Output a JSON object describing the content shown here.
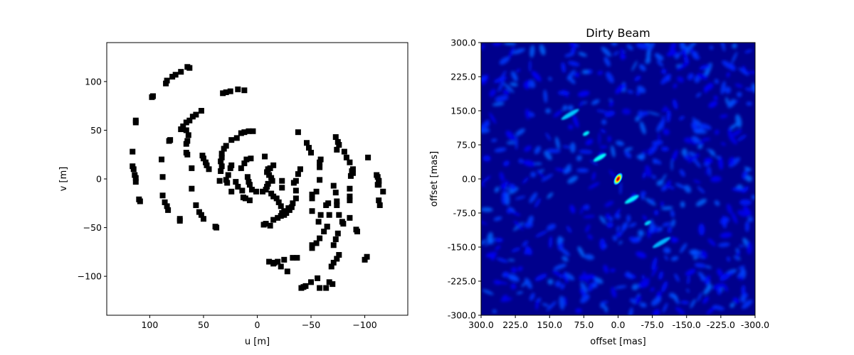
{
  "chart_data": [
    {
      "type": "scatter",
      "title": "",
      "xlabel": "u [m]",
      "ylabel": "v [m]",
      "xlim": [
        140,
        -140
      ],
      "ylim": [
        -140,
        140
      ],
      "xticks": [
        100,
        50,
        0,
        -50,
        -100
      ],
      "xtick_labels": [
        "100",
        "50",
        "0",
        "−50",
        "−100"
      ],
      "yticks": [
        100,
        50,
        0,
        -50,
        -100
      ],
      "ytick_labels": [
        "100",
        "50",
        "0",
        "−50",
        "−100"
      ],
      "grid": false,
      "marker": "square",
      "marker_color": "#000000",
      "points": [
        [
          65,
          115
        ],
        [
          63,
          114
        ],
        [
          71,
          110
        ],
        [
          76,
          107
        ],
        [
          79,
          105
        ],
        [
          84,
          101
        ],
        [
          85,
          98
        ],
        [
          97,
          85
        ],
        [
          98,
          84
        ],
        [
          113,
          60
        ],
        [
          113,
          58
        ],
        [
          116,
          28
        ],
        [
          116,
          13
        ],
        [
          115,
          10
        ],
        [
          114,
          4
        ],
        [
          113,
          1
        ],
        [
          113,
          -3
        ],
        [
          110,
          -21
        ],
        [
          109,
          -23
        ],
        [
          89,
          20
        ],
        [
          88,
          2
        ],
        [
          88,
          -17
        ],
        [
          86,
          -24
        ],
        [
          84,
          -28
        ],
        [
          83,
          -32
        ],
        [
          72,
          -41
        ],
        [
          72,
          -43
        ],
        [
          82,
          39
        ],
        [
          81,
          40
        ],
        [
          71,
          51
        ],
        [
          69,
          54
        ],
        [
          66,
          58
        ],
        [
          63,
          60
        ],
        [
          60,
          64
        ],
        [
          57,
          66
        ],
        [
          52,
          70
        ],
        [
          66,
          50
        ],
        [
          64,
          45
        ],
        [
          65,
          39
        ],
        [
          66,
          36
        ],
        [
          66,
          27
        ],
        [
          65,
          25
        ],
        [
          61,
          11
        ],
        [
          61,
          -10
        ],
        [
          57,
          -27
        ],
        [
          54,
          -34
        ],
        [
          52,
          -37
        ],
        [
          50,
          -41
        ],
        [
          39,
          -49
        ],
        [
          38,
          -50
        ],
        [
          45,
          10
        ],
        [
          47,
          14
        ],
        [
          48,
          17
        ],
        [
          50,
          21
        ],
        [
          51,
          24
        ],
        [
          32,
          88
        ],
        [
          29,
          89
        ],
        [
          25,
          90
        ],
        [
          18,
          92
        ],
        [
          12,
          91
        ],
        [
          35,
          -2
        ],
        [
          34,
          8
        ],
        [
          33,
          13
        ],
        [
          34,
          18
        ],
        [
          33,
          22
        ],
        [
          33,
          26
        ],
        [
          31,
          31
        ],
        [
          29,
          34
        ],
        [
          24,
          40
        ],
        [
          19,
          42
        ],
        [
          15,
          47
        ],
        [
          12,
          48
        ],
        [
          8,
          49
        ],
        [
          4,
          49
        ],
        [
          28,
          -4
        ],
        [
          29,
          -1
        ],
        [
          27,
          4
        ],
        [
          25,
          11
        ],
        [
          24,
          14
        ],
        [
          24,
          -13
        ],
        [
          20,
          -3
        ],
        [
          18,
          -8
        ],
        [
          14,
          -12
        ],
        [
          13,
          -19
        ],
        [
          11,
          -20
        ],
        [
          15,
          11
        ],
        [
          12,
          16
        ],
        [
          10,
          20
        ],
        [
          6,
          21
        ],
        [
          9,
          2
        ],
        [
          8,
          -3
        ],
        [
          7,
          -6
        ],
        [
          5,
          -11
        ],
        [
          1,
          -13
        ],
        [
          -5,
          -13
        ],
        [
          -8,
          -11
        ],
        [
          -9,
          -8
        ],
        [
          -10,
          -5
        ],
        [
          -14,
          -2
        ],
        [
          -13,
          1
        ],
        [
          -11,
          4
        ],
        [
          -9,
          7
        ],
        [
          -10,
          10
        ],
        [
          -12,
          11
        ],
        [
          -15,
          14
        ],
        [
          -7,
          23
        ],
        [
          -13,
          -15
        ],
        [
          -15,
          -18
        ],
        [
          -18,
          -20
        ],
        [
          -20,
          -24
        ],
        [
          -22,
          -28
        ],
        [
          7,
          -22
        ],
        [
          -23,
          -2
        ],
        [
          -23,
          -9
        ],
        [
          -23,
          -35
        ],
        [
          -25,
          -33
        ],
        [
          -29,
          -30
        ],
        [
          -33,
          -25
        ],
        [
          -36,
          -20
        ],
        [
          -36,
          -12
        ],
        [
          -34,
          -4
        ],
        [
          -36,
          -2
        ],
        [
          -38,
          5
        ],
        [
          -40,
          10
        ],
        [
          -6,
          -47
        ],
        [
          -8,
          -46
        ],
        [
          -12,
          -48
        ],
        [
          -15,
          -42
        ],
        [
          -19,
          -40
        ],
        [
          -22,
          -38
        ],
        [
          -25,
          -37
        ],
        [
          -27,
          -35
        ],
        [
          -30,
          -32
        ],
        [
          -32,
          -29
        ],
        [
          -38,
          48
        ],
        [
          -46,
          37
        ],
        [
          -48,
          32
        ],
        [
          -50,
          27
        ],
        [
          -59,
          20
        ],
        [
          -58,
          17
        ],
        [
          -58,
          12
        ],
        [
          -58,
          -1
        ],
        [
          -55,
          -13
        ],
        [
          -51,
          -16
        ],
        [
          -51,
          -20
        ],
        [
          -51,
          -33
        ],
        [
          -59,
          -37
        ],
        [
          -57,
          -44
        ],
        [
          -65,
          -49
        ],
        [
          -62,
          -54
        ],
        [
          -58,
          -61
        ],
        [
          -55,
          -66
        ],
        [
          -51,
          -68
        ],
        [
          -51,
          -71
        ],
        [
          -66,
          -25
        ],
        [
          -67,
          -37
        ],
        [
          -65,
          -49
        ],
        [
          -71,
          -7
        ],
        [
          -73,
          -14
        ],
        [
          -74,
          -23
        ],
        [
          -74,
          -27
        ],
        [
          -64,
          -27
        ],
        [
          -76,
          -37
        ],
        [
          -79,
          -44
        ],
        [
          -80,
          -46
        ],
        [
          -75,
          -56
        ],
        [
          -73,
          -62
        ],
        [
          -71,
          -68
        ],
        [
          -73,
          43
        ],
        [
          -75,
          38
        ],
        [
          -76,
          35
        ],
        [
          -74,
          30
        ],
        [
          -81,
          28
        ],
        [
          -83,
          22
        ],
        [
          -86,
          17
        ],
        [
          -89,
          10
        ],
        [
          -88,
          8
        ],
        [
          -89,
          6
        ],
        [
          -87,
          3
        ],
        [
          -86,
          -10
        ],
        [
          -86,
          -18
        ],
        [
          -86,
          -22
        ],
        [
          -86,
          -40
        ],
        [
          -92,
          -52
        ],
        [
          -93,
          -54
        ],
        [
          -76,
          -78
        ],
        [
          -74,
          -82
        ],
        [
          -71,
          -86
        ],
        [
          -69,
          -90
        ],
        [
          -56,
          -102
        ],
        [
          -50,
          -106
        ],
        [
          -45,
          -110
        ],
        [
          -43,
          -111
        ],
        [
          -41,
          -112
        ],
        [
          -28,
          -95
        ],
        [
          -22,
          -90
        ],
        [
          -15,
          -87
        ],
        [
          -11,
          -85
        ],
        [
          -100,
          -83
        ],
        [
          -102,
          -80
        ],
        [
          -103,
          22
        ],
        [
          -113,
          -22
        ],
        [
          -114,
          -27
        ],
        [
          -117,
          -13
        ],
        [
          -113,
          -2
        ],
        [
          -112,
          -6
        ],
        [
          -111,
          4
        ],
        [
          -112,
          2
        ],
        [
          -113,
          -2
        ],
        [
          -113,
          -6
        ],
        [
          -70,
          -108
        ],
        [
          -67,
          -106
        ],
        [
          -64,
          -112
        ],
        [
          -58,
          -112
        ],
        [
          -37,
          -81
        ],
        [
          -33,
          -81
        ],
        [
          -25,
          -83
        ],
        [
          -19,
          -85
        ],
        [
          -16,
          -86
        ]
      ]
    },
    {
      "type": "heatmap",
      "title": "Dirty Beam",
      "xlabel": "offset [mas]",
      "ylabel": "offset [mas]",
      "xlim": [
        300,
        -300
      ],
      "ylim": [
        -300,
        300
      ],
      "xticks": [
        300,
        225,
        150,
        75,
        0,
        -75,
        -150,
        -225,
        -300
      ],
      "xtick_labels": [
        "300.0",
        "225.0",
        "150.0",
        "75.0",
        "0.0",
        "-75.0",
        "-150.0",
        "-225.0",
        "-300.0"
      ],
      "yticks": [
        300,
        225,
        150,
        75,
        0,
        -75,
        -150,
        -225,
        -300
      ],
      "ytick_labels": [
        "300.0",
        "225.0",
        "150.0",
        "75.0",
        "0.0",
        "-75.0",
        "-150.0",
        "-225.0",
        "-300.0"
      ],
      "colormap": "jet",
      "peak": [
        0,
        0
      ],
      "sidelobes": [
        {
          "x": 105,
          "y": 142,
          "w": 28,
          "h": 6,
          "angle": -30,
          "value": 0.32
        },
        {
          "x": 70,
          "y": 100,
          "w": 10,
          "h": 5,
          "angle": -30,
          "value": 0.36
        },
        {
          "x": 40,
          "y": 47,
          "w": 20,
          "h": 6,
          "angle": -30,
          "value": 0.38
        },
        {
          "x": -30,
          "y": -45,
          "w": 22,
          "h": 6,
          "angle": -30,
          "value": 0.36
        },
        {
          "x": -65,
          "y": -97,
          "w": 10,
          "h": 5,
          "angle": -30,
          "value": 0.33
        },
        {
          "x": -95,
          "y": -140,
          "w": 28,
          "h": 6,
          "angle": -30,
          "value": 0.3
        }
      ]
    }
  ]
}
